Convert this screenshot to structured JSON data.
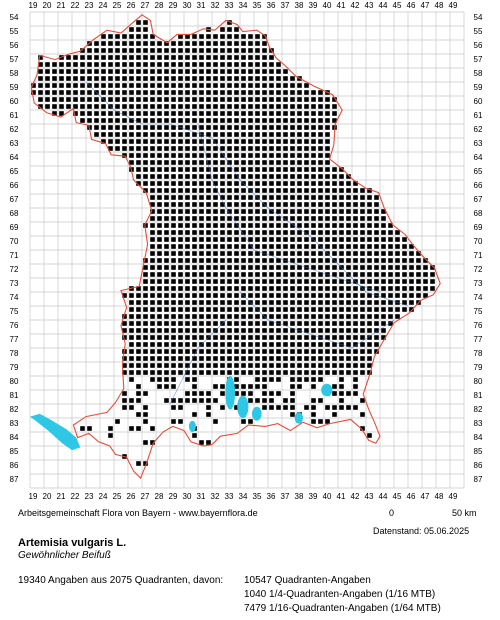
{
  "map": {
    "x_labels": [
      "19",
      "20",
      "21",
      "22",
      "23",
      "24",
      "25",
      "26",
      "27",
      "28",
      "29",
      "30",
      "31",
      "32",
      "33",
      "34",
      "35",
      "36",
      "37",
      "38",
      "39",
      "40",
      "41",
      "42",
      "43",
      "44",
      "45",
      "46",
      "47",
      "48",
      "49"
    ],
    "y_labels": [
      "54",
      "55",
      "56",
      "57",
      "58",
      "59",
      "60",
      "61",
      "62",
      "63",
      "64",
      "65",
      "66",
      "67",
      "68",
      "69",
      "70",
      "71",
      "72",
      "73",
      "74",
      "75",
      "76",
      "77",
      "78",
      "79",
      "80",
      "81",
      "82",
      "83",
      "84",
      "85",
      "86",
      "87"
    ],
    "colors": {
      "grid": "#c8c8c8",
      "border": "#e0503a",
      "water": "#2ec8e6",
      "river": "#3a78c8",
      "dot": "#000000"
    }
  },
  "footer": {
    "credit": "Arbeitsgemeinschaft Flora von Bayern - www.bayernflora.de",
    "scale_zero": "0",
    "scale_end": "50 km",
    "date": "Datenstand: 05.06.2025"
  },
  "species": {
    "latin": "Artemisia vulgaris L.",
    "common": "Gewöhnlicher Beifuß"
  },
  "stats": {
    "total": "19340 Angaben aus 2075 Quadranten, davon:",
    "line1": "10547 Quadranten-Angaben",
    "line2": "1040 1/4-Quadranten-Angaben (1/16 MTB)",
    "line3": "7479 1/16-Quadranten-Angaben (1/64 MTB)"
  }
}
